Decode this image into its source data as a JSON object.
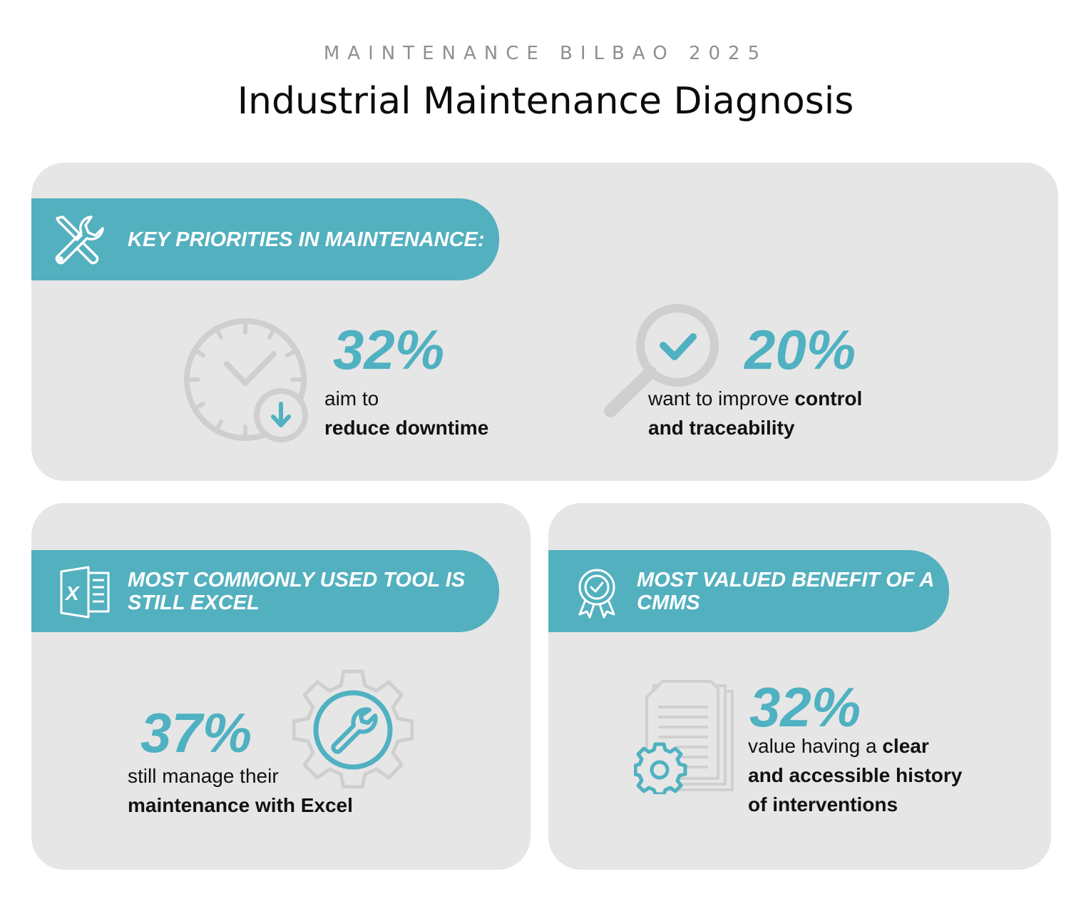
{
  "header": {
    "eyebrow": "MAINTENANCE BILBAO 2025",
    "title": "Industrial Maintenance Diagnosis"
  },
  "colors": {
    "accent": "#53b0bf",
    "card": "#e6e6e6",
    "icon_gray": "#cfcfcf"
  },
  "top_card": {
    "banner": "KEY PRIORITIES IN MAINTENANCE:",
    "banner_icon": "wrench-screwdriver-icon",
    "stat1": {
      "value": "32%",
      "line1": "aim to",
      "line2": "reduce downtime",
      "icon": "clock-down-arrow-icon"
    },
    "stat2": {
      "value": "20%",
      "line1_plain": "want to improve ",
      "line1_bold": "control",
      "line2": "and traceability",
      "icon": "magnifier-check-icon"
    }
  },
  "bottom_left_card": {
    "banner_line1": "MOST COMMONLY USED TOOL IS",
    "banner_line2": "STILL EXCEL",
    "banner_icon": "excel-icon",
    "stat": {
      "value": "37%",
      "line1": "still manage their",
      "line2": "maintenance with Excel",
      "icon": "gear-wrench-icon"
    }
  },
  "bottom_right_card": {
    "banner_line1": "MOST VALUED BENEFIT OF A",
    "banner_line2": "CMMS",
    "banner_icon": "award-badge-icon",
    "stat": {
      "value": "32%",
      "line1_plain": "value having a ",
      "line1_bold": "clear",
      "line2": "and accessible history",
      "line3": "of interventions",
      "icon": "documents-gear-icon"
    }
  }
}
